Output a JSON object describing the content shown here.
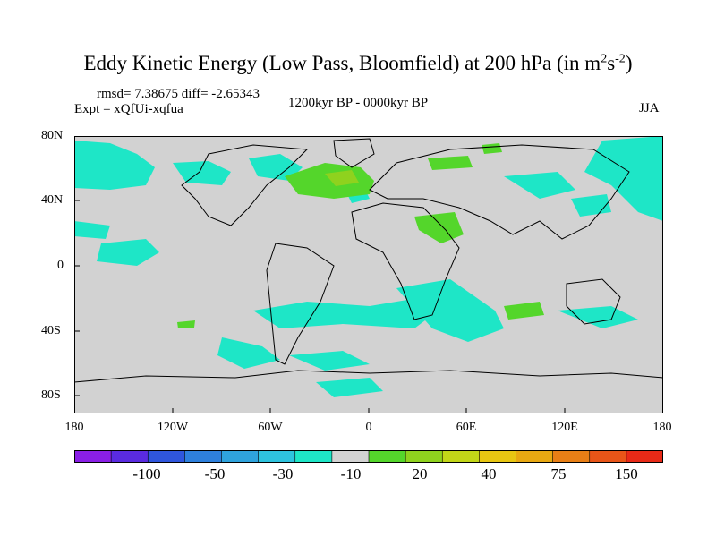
{
  "title": {
    "main": "Eddy Kinetic Energy (Low Pass, Bloomfield) at 200 hPa (in m",
    "sup1": "2",
    "mid": "s",
    "sup2": "-2",
    "end": ")"
  },
  "stats": "rmsd= 7.38675 diff= -2.65343",
  "expt": "Expt = xQfUi-xqfua",
  "period": "1200kyr BP - 0000kyr BP",
  "season": "JJA",
  "y_axis": {
    "labels": [
      "80N",
      "40N",
      "0",
      "40S",
      "80S"
    ]
  },
  "x_axis": {
    "labels": [
      "180",
      "120W",
      "60W",
      "0",
      "60E",
      "120E",
      "180"
    ]
  },
  "colorbar": {
    "colors": [
      "#8a1fe6",
      "#5a2be0",
      "#2f56dd",
      "#2e80dd",
      "#2fa3dd",
      "#2ec3de",
      "#1ee6c7",
      "#d2d2d2",
      "#54d62b",
      "#8fd21e",
      "#c2d618",
      "#e8c612",
      "#e8a812",
      "#e87f16",
      "#e85518",
      "#e82a17"
    ],
    "labels": [
      "-100",
      "-50",
      "-30",
      "-10",
      "20",
      "40",
      "75",
      "150"
    ]
  },
  "map": {
    "land_color": "#d2d2d2"
  }
}
